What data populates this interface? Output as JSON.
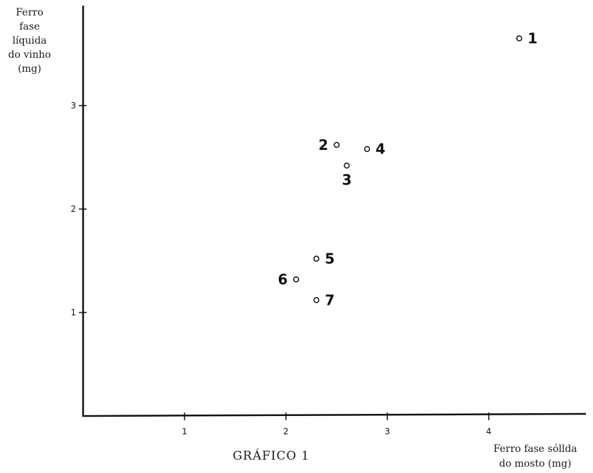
{
  "chart_data": {
    "type": "scatter",
    "title": "GRÁFICO 1",
    "ylabel_lines": [
      "Ferro",
      "fase",
      "líquida",
      "do vinho",
      "(mg)"
    ],
    "xlabel_lines": [
      "Ferro fase sóllda",
      "do mosto (mg)"
    ],
    "x_ticks": [
      "1",
      "2",
      "3",
      "4"
    ],
    "y_ticks": [
      "1",
      "2",
      "3"
    ],
    "xlim": [
      0,
      5
    ],
    "ylim": [
      0,
      4
    ],
    "grid": false,
    "points": [
      {
        "label": "1",
        "x": 4.3,
        "y": 3.65
      },
      {
        "label": "2",
        "x": 2.5,
        "y": 2.62
      },
      {
        "label": "3",
        "x": 2.6,
        "y": 2.42
      },
      {
        "label": "4",
        "x": 2.8,
        "y": 2.58
      },
      {
        "label": "5",
        "x": 2.3,
        "y": 1.52
      },
      {
        "label": "6",
        "x": 2.1,
        "y": 1.32
      },
      {
        "label": "7",
        "x": 2.3,
        "y": 1.12
      }
    ]
  }
}
